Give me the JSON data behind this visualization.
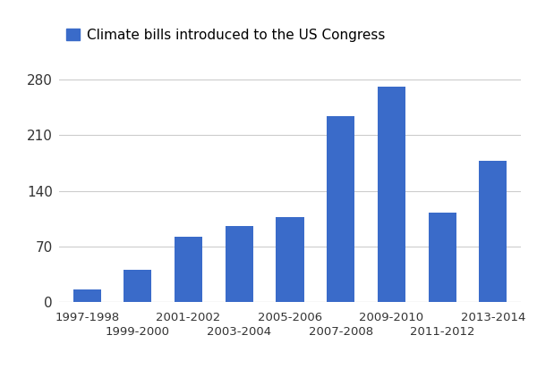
{
  "categories": [
    "1997-1998",
    "1999-2000",
    "2001-2002",
    "2003-2004",
    "2005-2006",
    "2007-2008",
    "2009-2010",
    "2011-2012",
    "2013-2014"
  ],
  "values": [
    15,
    40,
    82,
    96,
    107,
    234,
    271,
    112,
    178
  ],
  "bar_color": "#3a6bc9",
  "legend_label": "Climate bills introduced to the US Congress",
  "legend_color": "#3a6bc9",
  "yticks": [
    0,
    70,
    140,
    210,
    280
  ],
  "ylim": [
    0,
    300
  ],
  "background_color": "#ffffff",
  "grid_color": "#cccccc",
  "tick_label_color": "#333333",
  "bar_width": 0.55,
  "legend_fontsize": 11,
  "tick_fontsize": 11,
  "xtick_fontsize": 9.5
}
